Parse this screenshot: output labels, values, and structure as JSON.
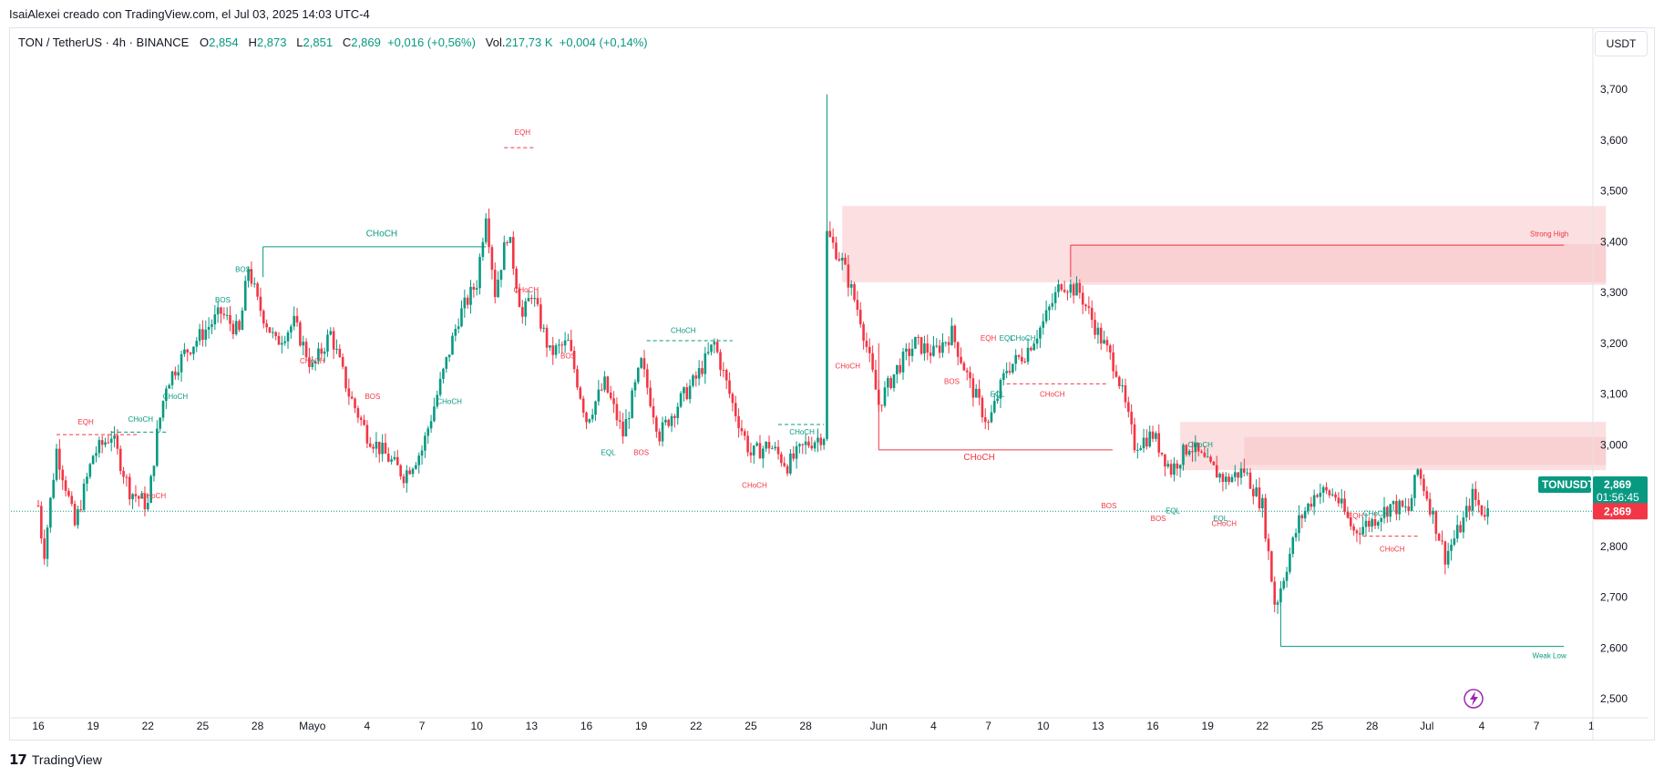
{
  "caption": "IsaiAlexei creado con TradingView.com, el Jul 03, 2025 14:03 UTC-4",
  "legend": {
    "title": "TON / TetherUS · 4h · BINANCE",
    "o_label": "O",
    "o_value": "2,854",
    "h_label": "H",
    "h_value": "2,873",
    "l_label": "L",
    "l_value": "2,851",
    "c_label": "C",
    "c_value": "2,869",
    "change": "+0,016 (+0,56%)",
    "vol_label": "Vol.",
    "vol_value": "217,73 K",
    "vol_change": "+0,004 (+0,14%)"
  },
  "currency_button": "USDT",
  "footer": {
    "brand": "TradingView"
  },
  "colors": {
    "up": "#089981",
    "down": "#f23645",
    "zone": "#f7c5c9",
    "grid": "#e0e3eb"
  },
  "chart_data": {
    "type": "candlestick",
    "symbol": "TONUSDT",
    "y_range": [
      2.46,
      3.84
    ],
    "y_ticks": [
      {
        "v": 3.7,
        "label": "3,700"
      },
      {
        "v": 3.6,
        "label": "3,600"
      },
      {
        "v": 3.5,
        "label": "3,500"
      },
      {
        "v": 3.4,
        "label": "3,400"
      },
      {
        "v": 3.3,
        "label": "3,300"
      },
      {
        "v": 3.2,
        "label": "3,200"
      },
      {
        "v": 3.1,
        "label": "3,100"
      },
      {
        "v": 3.0,
        "label": "3,000"
      },
      {
        "v": 2.8,
        "label": "2,800"
      },
      {
        "v": 2.7,
        "label": "2,700"
      },
      {
        "v": 2.6,
        "label": "2,600"
      },
      {
        "v": 2.5,
        "label": "2,500"
      }
    ],
    "x_ticks": [
      {
        "d": 0,
        "label": "16"
      },
      {
        "d": 3,
        "label": "19"
      },
      {
        "d": 6,
        "label": "22"
      },
      {
        "d": 9,
        "label": "25"
      },
      {
        "d": 12,
        "label": "28"
      },
      {
        "d": 15,
        "label": "Mayo"
      },
      {
        "d": 18,
        "label": "4"
      },
      {
        "d": 21,
        "label": "7"
      },
      {
        "d": 24,
        "label": "10"
      },
      {
        "d": 27,
        "label": "13"
      },
      {
        "d": 30,
        "label": "16"
      },
      {
        "d": 33,
        "label": "19"
      },
      {
        "d": 36,
        "label": "22"
      },
      {
        "d": 39,
        "label": "25"
      },
      {
        "d": 42,
        "label": "28"
      },
      {
        "d": 46,
        "label": "Jun"
      },
      {
        "d": 49,
        "label": "4"
      },
      {
        "d": 52,
        "label": "7"
      },
      {
        "d": 55,
        "label": "10"
      },
      {
        "d": 58,
        "label": "13"
      },
      {
        "d": 61,
        "label": "16"
      },
      {
        "d": 64,
        "label": "19"
      },
      {
        "d": 67,
        "label": "22"
      },
      {
        "d": 70,
        "label": "25"
      },
      {
        "d": 73,
        "label": "28"
      },
      {
        "d": 76,
        "label": "Jul"
      },
      {
        "d": 79,
        "label": "4"
      },
      {
        "d": 82,
        "label": "7"
      },
      {
        "d": 85,
        "label": "1"
      }
    ],
    "price_path": [
      [
        0,
        2.88
      ],
      [
        0.3,
        2.78
      ],
      [
        1,
        2.99
      ],
      [
        1.5,
        2.92
      ],
      [
        2,
        2.84
      ],
      [
        3,
        2.98
      ],
      [
        4,
        3.02
      ],
      [
        5,
        2.91
      ],
      [
        6,
        2.88
      ],
      [
        6.5,
        3.02
      ],
      [
        7,
        3.12
      ],
      [
        8,
        3.18
      ],
      [
        9,
        3.22
      ],
      [
        10,
        3.26
      ],
      [
        11,
        3.22
      ],
      [
        11.5,
        3.35
      ],
      [
        12,
        3.28
      ],
      [
        13,
        3.2
      ],
      [
        14,
        3.24
      ],
      [
        15,
        3.15
      ],
      [
        16,
        3.22
      ],
      [
        17,
        3.1
      ],
      [
        18,
        3.02
      ],
      [
        19,
        2.98
      ],
      [
        20,
        2.94
      ],
      [
        21,
        2.99
      ],
      [
        22,
        3.12
      ],
      [
        23,
        3.25
      ],
      [
        24,
        3.32
      ],
      [
        24.5,
        3.46
      ],
      [
        25,
        3.3
      ],
      [
        25.7,
        3.42
      ],
      [
        26.5,
        3.25
      ],
      [
        27,
        3.3
      ],
      [
        28,
        3.18
      ],
      [
        29,
        3.2
      ],
      [
        30,
        3.05
      ],
      [
        31,
        3.12
      ],
      [
        32,
        3.02
      ],
      [
        33,
        3.16
      ],
      [
        34,
        3.02
      ],
      [
        35,
        3.08
      ],
      [
        36,
        3.13
      ],
      [
        37,
        3.2
      ],
      [
        38,
        3.08
      ],
      [
        39,
        2.98
      ],
      [
        40,
        3.0
      ],
      [
        41,
        2.96
      ],
      [
        42,
        3.0
      ],
      [
        43,
        3.02
      ],
      [
        43.1,
        3.42
      ],
      [
        44,
        3.36
      ],
      [
        45,
        3.25
      ],
      [
        46,
        3.08
      ],
      [
        47,
        3.15
      ],
      [
        48,
        3.2
      ],
      [
        49,
        3.18
      ],
      [
        50,
        3.22
      ],
      [
        51,
        3.12
      ],
      [
        52,
        3.04
      ],
      [
        53,
        3.15
      ],
      [
        54,
        3.18
      ],
      [
        55,
        3.24
      ],
      [
        56,
        3.32
      ],
      [
        57,
        3.3
      ],
      [
        58,
        3.22
      ],
      [
        59,
        3.15
      ],
      [
        60,
        3.0
      ],
      [
        61,
        3.02
      ],
      [
        62,
        2.95
      ],
      [
        63,
        3.0
      ],
      [
        64,
        2.96
      ],
      [
        65,
        2.93
      ],
      [
        66,
        2.95
      ],
      [
        67,
        2.88
      ],
      [
        67.7,
        2.68
      ],
      [
        68,
        2.72
      ],
      [
        69,
        2.85
      ],
      [
        70,
        2.91
      ],
      [
        71,
        2.9
      ],
      [
        72,
        2.83
      ],
      [
        73,
        2.85
      ],
      [
        74,
        2.88
      ],
      [
        75,
        2.87
      ],
      [
        75.5,
        2.95
      ],
      [
        76,
        2.9
      ],
      [
        77,
        2.78
      ],
      [
        78,
        2.85
      ],
      [
        78.5,
        2.9
      ],
      [
        79,
        2.87
      ],
      [
        79.4,
        2.869
      ]
    ],
    "zones": [
      {
        "x1": 44,
        "x2": 85.8,
        "y1": 3.32,
        "y2": 3.47
      },
      {
        "x1": 56.5,
        "x2": 85.8,
        "y1": 3.315,
        "y2": 3.395
      },
      {
        "x1": 62.5,
        "x2": 85.8,
        "y1": 2.95,
        "y2": 3.045
      },
      {
        "x1": 66,
        "x2": 85.8,
        "y1": 2.96,
        "y2": 3.015
      }
    ],
    "lines": [
      {
        "x1": 12.3,
        "x2": 24.5,
        "y": 3.39,
        "color": "#089981",
        "dash": false
      },
      {
        "x1": 56.5,
        "x2": 83.5,
        "y": 3.393,
        "color": "#f23645",
        "dash": false
      },
      {
        "x1": 46,
        "x2": 58.8,
        "y": 2.99,
        "color": "#f23645",
        "dash": false
      },
      {
        "x1": 68,
        "x2": 83.5,
        "y": 2.603,
        "color": "#089981",
        "dash": false
      },
      {
        "x1": 25.5,
        "x2": 27.2,
        "y": 3.585,
        "color": "#f23645",
        "dash": true
      },
      {
        "x1": 1,
        "x2": 5.5,
        "y": 3.02,
        "color": "#f23645",
        "dash": true
      },
      {
        "x1": 4,
        "x2": 7,
        "y": 3.025,
        "color": "#089981",
        "dash": true
      },
      {
        "x1": 33.3,
        "x2": 38,
        "y": 3.205,
        "color": "#089981",
        "dash": true
      },
      {
        "x1": 40.5,
        "x2": 43,
        "y": 3.04,
        "color": "#089981",
        "dash": true
      },
      {
        "x1": 53,
        "x2": 58.5,
        "y": 3.12,
        "color": "#f23645",
        "dash": true
      },
      {
        "x1": 72.5,
        "x2": 75.5,
        "y": 2.82,
        "color": "#f23645",
        "dash": true
      }
    ],
    "labels": [
      {
        "x": 26.5,
        "y": 3.61,
        "text": "EQH",
        "color": "#f23645",
        "size": 8
      },
      {
        "x": 18.8,
        "y": 3.41,
        "text": "CHoCH",
        "color": "#089981",
        "size": 10
      },
      {
        "x": 11.2,
        "y": 3.34,
        "text": "BOS",
        "color": "#089981",
        "size": 8
      },
      {
        "x": 10.1,
        "y": 3.28,
        "text": "BOS",
        "color": "#089981",
        "size": 8
      },
      {
        "x": 7.5,
        "y": 3.09,
        "text": "CHoCH",
        "color": "#089981",
        "size": 8
      },
      {
        "x": 5.6,
        "y": 3.045,
        "text": "CHoCH",
        "color": "#089981",
        "size": 8
      },
      {
        "x": 2.6,
        "y": 3.04,
        "text": "EQH",
        "color": "#f23645",
        "size": 8
      },
      {
        "x": 6.3,
        "y": 2.895,
        "text": "CHoCH",
        "color": "#f23645",
        "size": 8
      },
      {
        "x": 15.0,
        "y": 3.16,
        "text": "CHoCH",
        "color": "#f23645",
        "size": 8
      },
      {
        "x": 18.3,
        "y": 3.09,
        "text": "BOS",
        "color": "#f23645",
        "size": 8
      },
      {
        "x": 22.5,
        "y": 3.08,
        "text": "CHoCH",
        "color": "#089981",
        "size": 8
      },
      {
        "x": 26.7,
        "y": 3.3,
        "text": "CHoCH",
        "color": "#f23645",
        "size": 8
      },
      {
        "x": 29.0,
        "y": 3.17,
        "text": "BOS",
        "color": "#f23645",
        "size": 8
      },
      {
        "x": 35.3,
        "y": 3.22,
        "text": "CHoCH",
        "color": "#089981",
        "size": 8
      },
      {
        "x": 31.2,
        "y": 2.98,
        "text": "EQL",
        "color": "#089981",
        "size": 8
      },
      {
        "x": 33.0,
        "y": 2.98,
        "text": "BOS",
        "color": "#f23645",
        "size": 8
      },
      {
        "x": 41.8,
        "y": 3.02,
        "text": "CHoCH",
        "color": "#089981",
        "size": 8
      },
      {
        "x": 39.2,
        "y": 2.915,
        "text": "CHoCH",
        "color": "#f23645",
        "size": 8
      },
      {
        "x": 44.3,
        "y": 3.15,
        "text": "CHoCH",
        "color": "#f23645",
        "size": 8
      },
      {
        "x": 51.5,
        "y": 2.97,
        "text": "CHoCH",
        "color": "#f23645",
        "size": 10
      },
      {
        "x": 50.0,
        "y": 3.12,
        "text": "BOS",
        "color": "#f23645",
        "size": 8
      },
      {
        "x": 52.5,
        "y": 3.095,
        "text": "EQL",
        "color": "#089981",
        "size": 8
      },
      {
        "x": 55.5,
        "y": 3.095,
        "text": "CHoCH",
        "color": "#f23645",
        "size": 8
      },
      {
        "x": 52.0,
        "y": 3.205,
        "text": "EQH",
        "color": "#f23645",
        "size": 8
      },
      {
        "x": 53.0,
        "y": 3.205,
        "text": "EQL",
        "color": "#089981",
        "size": 8
      },
      {
        "x": 53.9,
        "y": 3.205,
        "text": "CHoCH",
        "color": "#089981",
        "size": 8
      },
      {
        "x": 63.6,
        "y": 2.995,
        "text": "CHoCH",
        "color": "#089981",
        "size": 8
      },
      {
        "x": 58.6,
        "y": 2.875,
        "text": "BOS",
        "color": "#f23645",
        "size": 8
      },
      {
        "x": 61.3,
        "y": 2.85,
        "text": "BOS",
        "color": "#f23645",
        "size": 8
      },
      {
        "x": 62.1,
        "y": 2.865,
        "text": "EQL",
        "color": "#089981",
        "size": 8
      },
      {
        "x": 64.7,
        "y": 2.85,
        "text": "EQL",
        "color": "#089981",
        "size": 8
      },
      {
        "x": 64.9,
        "y": 2.84,
        "text": "CHoCH",
        "color": "#f23645",
        "size": 8
      },
      {
        "x": 72.1,
        "y": 2.855,
        "text": "EQH",
        "color": "#f23645",
        "size": 8
      },
      {
        "x": 73.2,
        "y": 2.86,
        "text": "CHoCH",
        "color": "#089981",
        "size": 8
      },
      {
        "x": 74.1,
        "y": 2.79,
        "text": "CHoCH",
        "color": "#f23645",
        "size": 8
      },
      {
        "x": 82.7,
        "y": 3.41,
        "text": "Strong High",
        "color": "#f23645",
        "size": 8
      },
      {
        "x": 82.7,
        "y": 2.58,
        "text": "Weak Low",
        "color": "#089981",
        "size": 8
      }
    ],
    "last_price": {
      "v": 2.869,
      "label": "2,869"
    },
    "symbol_tag": "TONUSDT",
    "price_tag": "2,869",
    "countdown": "01:56:45",
    "last_tag": "2,869"
  }
}
